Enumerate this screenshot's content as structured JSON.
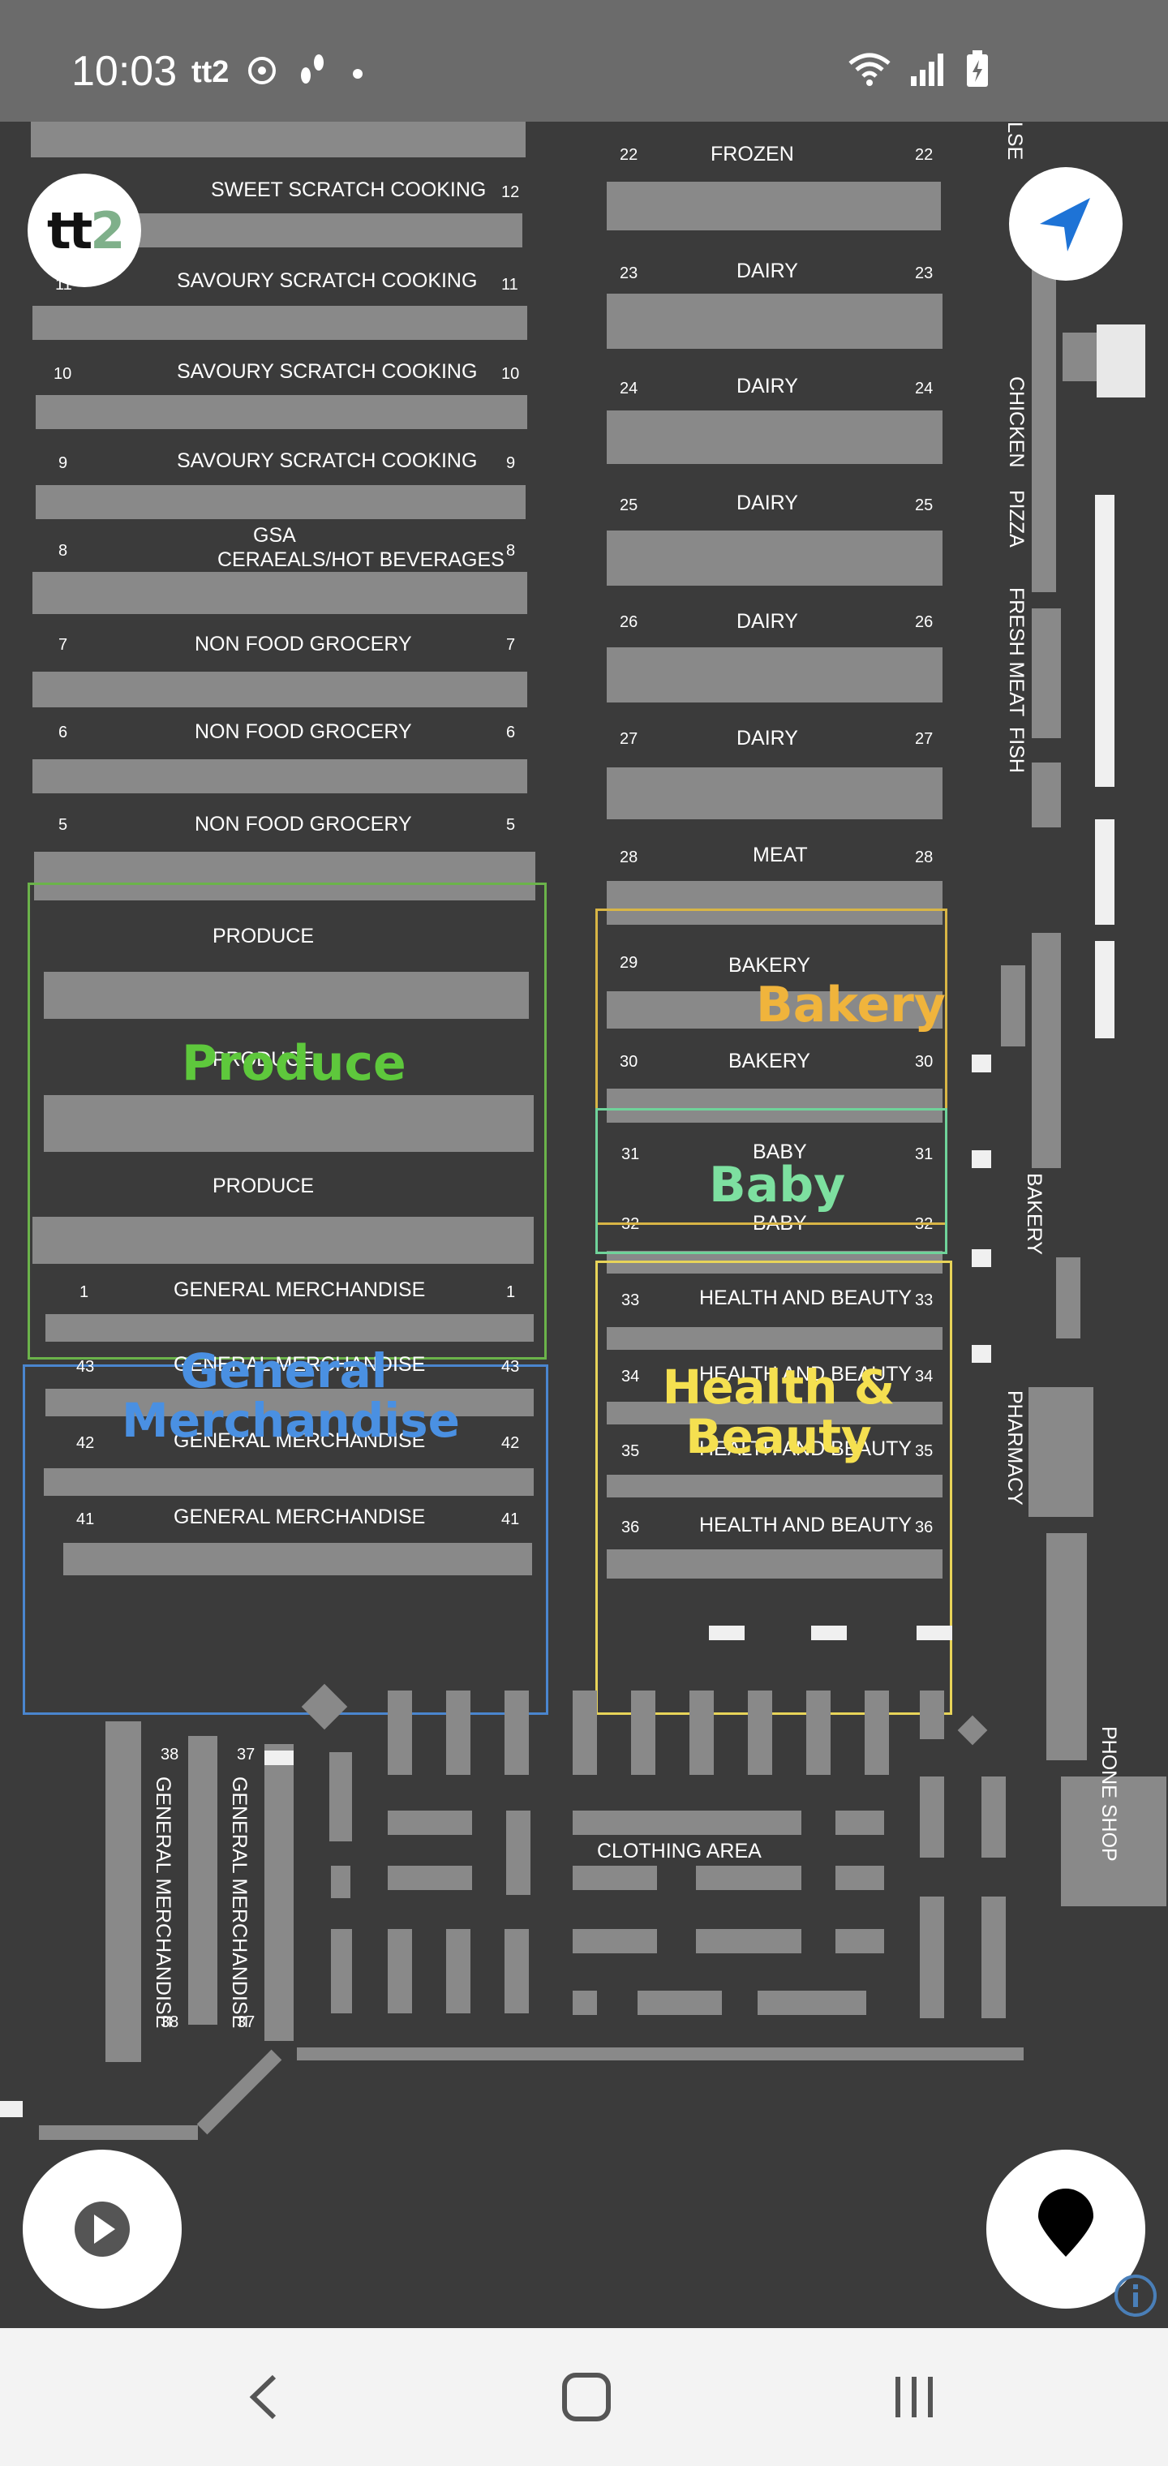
{
  "status_bar": {
    "time": "10:03",
    "left_icons": [
      "tt2-app-icon",
      "sync-icon",
      "footsteps-icon",
      "dot-icon"
    ],
    "right_icons": [
      "wifi-icon",
      "signal-icon",
      "battery-icon"
    ]
  },
  "app": {
    "logo_text": "tt2",
    "logo_colors": {
      "t": "#111111",
      "2": "#7fb08a"
    }
  },
  "left_aisles": [
    {
      "num": "12",
      "label": "SWEET SCRATCH COOKING"
    },
    {
      "num": "11",
      "label": "SAVOURY SCRATCH COOKING"
    },
    {
      "num": "10",
      "label": "SAVOURY SCRATCH COOKING"
    },
    {
      "num": "9",
      "label": "SAVOURY SCRATCH COOKING"
    },
    {
      "num": "8",
      "label": "GSA",
      "label2": "CERAEALS/HOT BEVERAGES"
    },
    {
      "num": "7",
      "label": "NON FOOD GROCERY"
    },
    {
      "num": "6",
      "label": "NON FOOD GROCERY"
    },
    {
      "num": "5",
      "label": "NON FOOD GROCERY"
    }
  ],
  "produce_labels": [
    "PRODUCE",
    "PRODUCE",
    "PRODUCE"
  ],
  "gm_aisles": [
    {
      "num": "1",
      "label": "GENERAL MERCHANDISE"
    },
    {
      "num": "43",
      "label": "GENERAL MERCHANDISE"
    },
    {
      "num": "42",
      "label": "GENERAL MERCHANDISE"
    },
    {
      "num": "41",
      "label": "GENERAL MERCHANDISE"
    }
  ],
  "right_aisles": [
    {
      "num": "22",
      "label": "FROZEN"
    },
    {
      "num": "23",
      "label": "DAIRY"
    },
    {
      "num": "24",
      "label": "DAIRY"
    },
    {
      "num": "25",
      "label": "DAIRY"
    },
    {
      "num": "26",
      "label": "DAIRY"
    },
    {
      "num": "27",
      "label": "DAIRY"
    },
    {
      "num": "28",
      "label": "MEAT"
    },
    {
      "num": "29",
      "label": "BAKERY"
    },
    {
      "num": "30",
      "label": "BAKERY"
    },
    {
      "num": "31",
      "label": "BABY"
    },
    {
      "num": "32",
      "label": "BABY"
    },
    {
      "num": "33",
      "label": "HEALTH AND BEAUTY"
    },
    {
      "num": "34",
      "label": "HEALTH AND BEAUTY"
    },
    {
      "num": "35",
      "label": "HEALTH AND BEAUTY"
    },
    {
      "num": "36",
      "label": "HEALTH AND BEAUTY"
    }
  ],
  "zones": {
    "produce": {
      "label": "Produce",
      "color": "#5ec83c"
    },
    "general_merchandise": {
      "label": "General Merchandise",
      "line1": "General",
      "line2": "Merchandise",
      "color": "#4a90e2"
    },
    "bakery": {
      "label": "Bakery",
      "color": "#f0b43c"
    },
    "baby": {
      "label": "Baby",
      "color": "#7de0a0"
    },
    "health_beauty": {
      "label": "Health & Beauty",
      "line1": "Health &",
      "line2": "Beauty",
      "color": "#f5e050"
    }
  },
  "side_labels": {
    "else": "LSE",
    "chicken": "CHICKEN",
    "pizza": "PIZZA",
    "fresh_meat": "FRESH MEAT",
    "fish": "FISH",
    "bakery": "BAKERY",
    "pharmacy": "PHARMACY",
    "phone_shop": "PHONE SHOP"
  },
  "clothing": {
    "label": "CLOTHING AREA",
    "gm_vertical_1": "GENERAL MERCHANDISE",
    "gm_vertical_2": "GENERAL MERCHANDISE",
    "num_38": "38",
    "num_37": "37"
  },
  "buttons": {
    "locate": "locate-arrow-icon",
    "play": "play-icon",
    "pin": "map-pin-icon",
    "info": "info-icon"
  },
  "nav": [
    "back-icon",
    "home-icon",
    "recents-icon"
  ]
}
